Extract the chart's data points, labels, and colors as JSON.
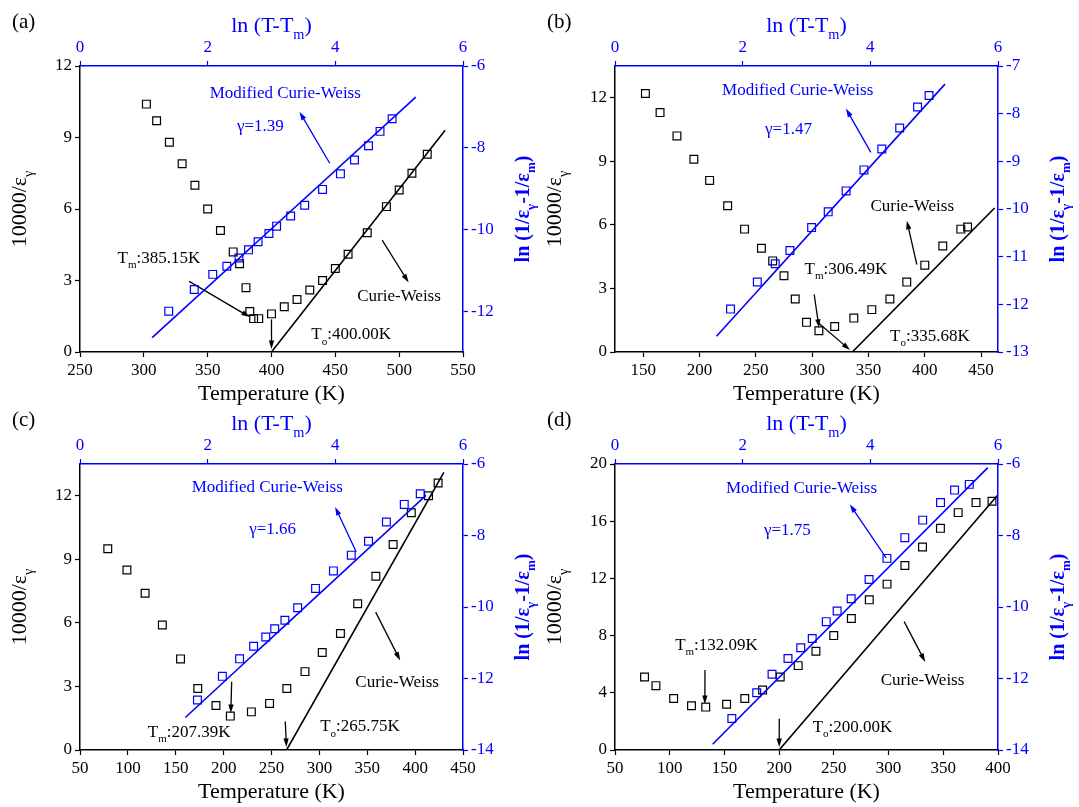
{
  "chart_data": [
    {
      "type": "scatter",
      "title": "(a)",
      "xlabel": "Temperature (K)",
      "ylabel": "10000/ε$_{γ}$",
      "xlim": [
        250,
        550
      ],
      "xticks": [
        250,
        300,
        350,
        400,
        450,
        500,
        550
      ],
      "ylim": [
        0,
        12
      ],
      "yticks": [
        0,
        3,
        6,
        9,
        12
      ],
      "series": [
        {
          "marker": "square",
          "color": "#000000",
          "x": [
            302,
            310,
            320,
            330,
            340,
            350,
            360,
            370,
            375,
            380,
            383,
            386,
            390,
            400,
            410,
            420,
            430,
            440,
            450,
            460,
            475,
            490,
            500,
            510,
            522
          ],
          "values": [
            10.4,
            9.7,
            8.8,
            7.9,
            7.0,
            6.0,
            5.1,
            4.2,
            3.7,
            2.7,
            1.7,
            1.4,
            1.4,
            1.6,
            1.9,
            2.2,
            2.6,
            3.0,
            3.5,
            4.1,
            5.0,
            6.1,
            6.8,
            7.5,
            8.3
          ]
        },
        {
          "type": "line",
          "color": "#000000",
          "x": [
            400,
            536
          ],
          "values": [
            0,
            9.3
          ]
        }
      ],
      "annotations": [
        "Curie-Weiss",
        {
          "text": "T$_{m}$:385.15K",
          "x": 385.15,
          "y": 1.4
        },
        {
          "text": "T$_{o}$:400.00K",
          "x": 400,
          "y": 0
        }
      ]
    },
    {
      "type": "scatter",
      "xlabel": "ln (T-T$_{m}$)",
      "ylabel": "ln (1/ε$_{γ}$-1/ε$_{m}$)",
      "xlim": [
        0,
        6
      ],
      "xticks": [
        0,
        2,
        4,
        6
      ],
      "ylim": [
        -13,
        -6
      ],
      "yticks": [
        -6,
        -8,
        -10,
        -12
      ],
      "series": [
        {
          "marker": "square",
          "color": "#0000ff",
          "x": [
            1.39,
            1.79,
            2.08,
            2.3,
            2.49,
            2.64,
            2.79,
            2.96,
            3.08,
            3.3,
            3.52,
            3.8,
            4.08,
            4.3,
            4.52,
            4.7,
            4.89
          ],
          "values": [
            -12.0,
            -11.47,
            -11.1,
            -10.9,
            -10.7,
            -10.5,
            -10.3,
            -10.1,
            -9.92,
            -9.67,
            -9.41,
            -9.02,
            -8.64,
            -8.3,
            -7.95,
            -7.6,
            -7.29
          ]
        },
        {
          "type": "line",
          "color": "#0000ff",
          "x": [
            1.13,
            5.26
          ],
          "values": [
            -12.65,
            -6.76
          ]
        }
      ],
      "annotations": [
        "Modified Curie-Weiss",
        "γ=1.39"
      ]
    },
    {
      "type": "scatter",
      "title": "(b)",
      "xlabel": "Temperature (K)",
      "ylabel": "10000/ε$_{γ}$",
      "xlim": [
        125,
        465
      ],
      "xticks": [
        150,
        200,
        250,
        300,
        350,
        400,
        450
      ],
      "ylim": [
        0,
        13.5
      ],
      "yticks": [
        0,
        3,
        6,
        9,
        12
      ],
      "series": [
        {
          "marker": "square",
          "color": "#000000",
          "x": [
            152,
            165,
            180,
            195,
            209,
            225,
            240,
            255,
            265,
            275,
            285,
            295,
            306,
            320,
            337,
            353,
            369,
            384,
            400,
            416,
            432,
            438
          ],
          "values": [
            12.2,
            11.3,
            10.2,
            9.1,
            8.1,
            6.9,
            5.8,
            4.9,
            4.3,
            3.6,
            2.5,
            1.4,
            1.0,
            1.2,
            1.6,
            2.0,
            2.5,
            3.3,
            4.1,
            5.0,
            5.8,
            5.9
          ]
        },
        {
          "type": "line",
          "color": "#000000",
          "x": [
            335.68,
            462
          ],
          "values": [
            0,
            6.8
          ]
        }
      ],
      "annotations": [
        "Curie-Weiss",
        {
          "text": "T$_{m}$:306.49K",
          "x": 306.49,
          "y": 1.0
        },
        {
          "text": "T$_{o}$:335.68K",
          "x": 335.68,
          "y": 0
        }
      ]
    },
    {
      "type": "scatter",
      "xlabel": "ln (T-T$_{m}$)",
      "ylabel": "ln (1/ε$_{γ}$-1/ε$_{m}$)",
      "xlim": [
        0,
        6
      ],
      "xticks": [
        0,
        2,
        4,
        6
      ],
      "ylim": [
        -13,
        -7
      ],
      "yticks": [
        -7,
        -8,
        -9,
        -10,
        -11,
        -12,
        -13
      ],
      "series": [
        {
          "marker": "square",
          "color": "#0000ff",
          "x": [
            1.81,
            2.23,
            2.51,
            2.74,
            3.08,
            3.34,
            3.62,
            3.9,
            4.18,
            4.46,
            4.74,
            4.92
          ],
          "values": [
            -12.1,
            -11.53,
            -11.15,
            -10.87,
            -10.39,
            -10.06,
            -9.62,
            -9.18,
            -8.74,
            -8.3,
            -7.86,
            -7.62
          ]
        },
        {
          "type": "line",
          "color": "#0000ff",
          "x": [
            1.59,
            5.17
          ],
          "values": [
            -12.67,
            -7.38
          ]
        }
      ],
      "annotations": [
        "Modified Curie-Weiss",
        "γ=1.47"
      ]
    },
    {
      "type": "scatter",
      "title": "(c)",
      "xlabel": "Temperature (K)",
      "ylabel": "10000/ε$_{γ}$",
      "xlim": [
        50,
        450
      ],
      "xticks": [
        50,
        100,
        150,
        200,
        250,
        300,
        350,
        400,
        450
      ],
      "ylim": [
        0,
        13.5
      ],
      "yticks": [
        0,
        3,
        6,
        9,
        12
      ],
      "series": [
        {
          "marker": "square",
          "color": "#000000",
          "x": [
            79,
            99,
            118,
            136,
            155,
            173,
            192,
            207,
            229,
            248,
            266,
            285,
            303,
            322,
            340,
            359,
            377,
            396,
            414,
            424
          ],
          "values": [
            9.5,
            8.5,
            7.4,
            5.9,
            4.3,
            2.9,
            2.1,
            1.6,
            1.8,
            2.2,
            2.9,
            3.7,
            4.6,
            5.5,
            6.9,
            8.2,
            9.7,
            11.2,
            12.0,
            12.6
          ]
        },
        {
          "type": "line",
          "color": "#000000",
          "x": [
            265.75,
            430
          ],
          "values": [
            0,
            13.1
          ]
        }
      ],
      "annotations": [
        "Curie-Weiss",
        {
          "text": "T$_{m}$:207.39K",
          "x": 207.39,
          "y": 1.6
        },
        {
          "text": "T$_{o}$:265.75K",
          "x": 265.75,
          "y": 0
        }
      ]
    },
    {
      "type": "scatter",
      "xlabel": "ln (T-T$_{m}$)",
      "ylabel": "ln (1/ε$_{γ}$-1/ε$_{m}$)",
      "xlim": [
        0,
        6
      ],
      "xticks": [
        0,
        2,
        4,
        6
      ],
      "ylim": [
        -14,
        -6
      ],
      "yticks": [
        -6,
        -8,
        -10,
        -12,
        -14
      ],
      "series": [
        {
          "marker": "square",
          "color": "#0000ff",
          "x": [
            1.84,
            2.23,
            2.5,
            2.72,
            2.91,
            3.05,
            3.21,
            3.41,
            3.69,
            3.97,
            4.25,
            4.52,
            4.8,
            5.08,
            5.33
          ],
          "values": [
            -12.6,
            -11.94,
            -11.45,
            -11.1,
            -10.84,
            -10.61,
            -10.37,
            -10.02,
            -9.48,
            -8.99,
            -8.55,
            -8.16,
            -7.62,
            -7.13,
            -6.83
          ]
        },
        {
          "type": "line",
          "color": "#0000ff",
          "x": [
            1.65,
            5.42
          ],
          "values": [
            -13.09,
            -6.88
          ]
        }
      ],
      "annotations": [
        "Modified Curie-Weiss",
        "γ=1.66"
      ]
    },
    {
      "type": "scatter",
      "title": "(d)",
      "xlabel": "Temperature (K)",
      "ylabel": "10000/ε$_{γ}$",
      "xlim": [
        50,
        400
      ],
      "xticks": [
        50,
        100,
        150,
        200,
        250,
        300,
        350,
        400
      ],
      "ylim": [
        0,
        20
      ],
      "yticks": [
        0,
        4,
        8,
        12,
        16,
        20
      ],
      "series": [
        {
          "marker": "square",
          "color": "#000000",
          "x": [
            77,
            87.4,
            103.6,
            119.9,
            132.9,
            152,
            168.6,
            184.9,
            201,
            217.4,
            233.6,
            249.9,
            266,
            282.4,
            298.6,
            314.9,
            331,
            347.4,
            363.6,
            379.9,
            394.5
          ],
          "values": [
            5.1,
            4.5,
            3.6,
            3.1,
            3.0,
            3.2,
            3.6,
            4.2,
            5.1,
            5.9,
            6.9,
            8.0,
            9.2,
            10.5,
            11.6,
            12.9,
            14.2,
            15.5,
            16.6,
            17.3,
            17.4
          ]
        },
        {
          "type": "line",
          "color": "#000000",
          "x": [
            200,
            399.4
          ],
          "values": [
            0,
            17.8
          ]
        }
      ],
      "annotations": [
        "Curie-Weiss",
        {
          "text": "T$_{m}$:132.09K",
          "x": 132.09,
          "y": 3.0
        },
        {
          "text": "T$_{o}$:200.00K",
          "x": 200,
          "y": 0
        }
      ]
    },
    {
      "type": "scatter",
      "xlabel": "ln (T-T$_{m}$)",
      "ylabel": "ln (1/ε$_{γ}$-1/ε$_{m}$)",
      "xlim": [
        0,
        6
      ],
      "xticks": [
        0,
        2,
        4,
        6
      ],
      "ylim": [
        -14,
        -6
      ],
      "yticks": [
        -6,
        -8,
        -10,
        -12,
        -14
      ],
      "series": [
        {
          "marker": "square",
          "color": "#0000ff",
          "x": [
            1.83,
            2.22,
            2.46,
            2.71,
            2.91,
            3.09,
            3.31,
            3.48,
            3.7,
            3.98,
            4.26,
            4.54,
            4.82,
            5.1,
            5.32,
            5.55
          ],
          "values": [
            -13.12,
            -12.4,
            -11.88,
            -11.44,
            -11.14,
            -10.88,
            -10.41,
            -10.11,
            -9.77,
            -9.23,
            -8.64,
            -8.06,
            -7.57,
            -7.08,
            -6.73,
            -6.57
          ]
        },
        {
          "type": "line",
          "color": "#0000ff",
          "x": [
            1.53,
            5.84
          ],
          "values": [
            -13.84,
            -6.1
          ]
        }
      ],
      "annotations": [
        "Modified Curie-Weiss",
        "γ=1.75"
      ]
    }
  ]
}
